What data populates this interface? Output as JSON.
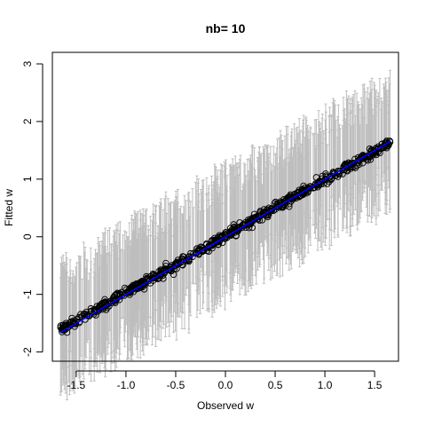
{
  "chart_data": {
    "type": "scatter",
    "title": "nb= 10",
    "xlabel": "Observed w",
    "ylabel": "Fitted w",
    "xlim": [
      -1.74,
      1.74
    ],
    "ylim": [
      -2.16,
      3.2
    ],
    "x_ticks": [
      {
        "value": -1.5,
        "label": "-1.5"
      },
      {
        "value": -1.0,
        "label": "-1.0"
      },
      {
        "value": -0.5,
        "label": "-0.5"
      },
      {
        "value": 0.0,
        "label": "0.0"
      },
      {
        "value": 0.5,
        "label": "0.5"
      },
      {
        "value": 1.0,
        "label": "1.0"
      },
      {
        "value": 1.5,
        "label": "1.5"
      }
    ],
    "y_ticks": [
      {
        "value": -2,
        "label": "-2"
      },
      {
        "value": -1,
        "label": "-1"
      },
      {
        "value": 0,
        "label": "0"
      },
      {
        "value": 1,
        "label": "1"
      },
      {
        "value": 2,
        "label": "2"
      },
      {
        "value": 3,
        "label": "3"
      }
    ],
    "grid": false,
    "fitted_points": {
      "description_fit": "approx linear: y = 0.01 + 0.98*x, dense cloud",
      "x_range": [
        -1.66,
        1.66
      ],
      "n_points": 700,
      "marker": "open-circle",
      "color": "#000000"
    },
    "error_bars": {
      "color": "#bebebe",
      "upper_range": [
        0.6,
        1.3
      ],
      "lower_range": [
        0.35,
        1.25
      ]
    },
    "reference_line": {
      "type": "identity",
      "x": [
        -1.66,
        1.66
      ],
      "y": [
        -1.66,
        1.66
      ],
      "color": "#0000ff"
    }
  }
}
